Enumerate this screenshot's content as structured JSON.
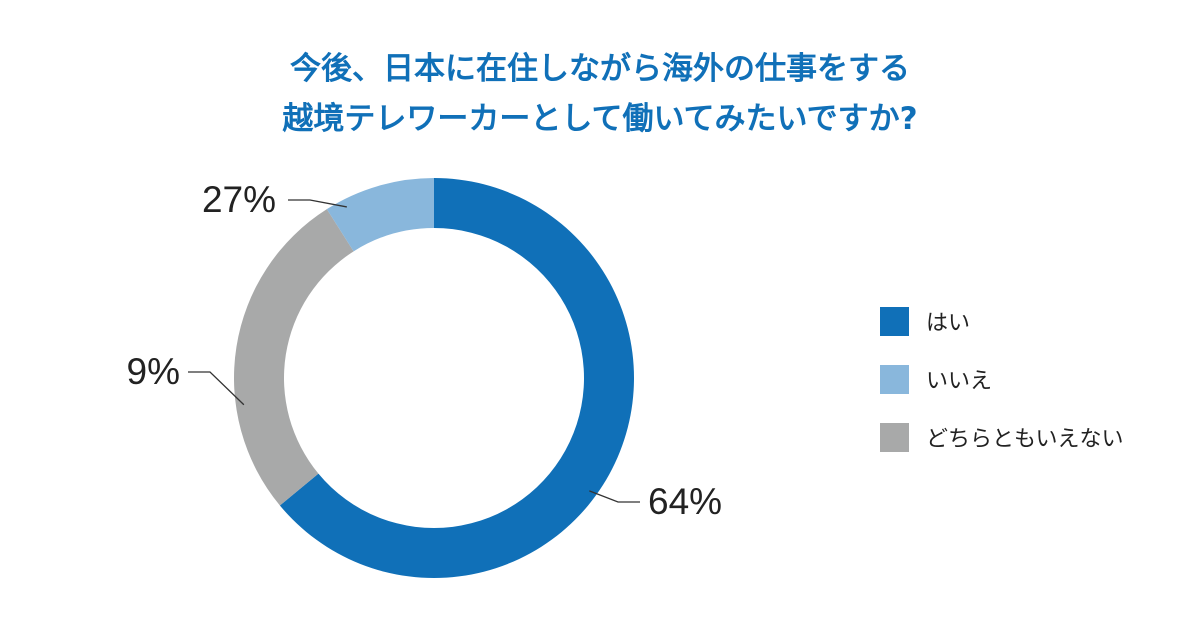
{
  "title": {
    "line1": "今後、日本に在住しながら海外の仕事をする",
    "line2": "越境テレワーカーとして働いてみたいですか?"
  },
  "chart_data": {
    "type": "pie",
    "donut": true,
    "title": "今後、日本に在住しながら海外の仕事をする越境テレワーカーとして働いてみたいですか?",
    "slices": [
      {
        "label": "はい",
        "value": 64,
        "display": "64%",
        "color": "#1070b8"
      },
      {
        "label": "いいえ",
        "value": 9,
        "display": "9%",
        "color": "#89b7dc"
      },
      {
        "label": "どちらともいえない",
        "value": 27,
        "display": "27%",
        "color": "#a8a9a9"
      }
    ],
    "legend_position": "right"
  }
}
